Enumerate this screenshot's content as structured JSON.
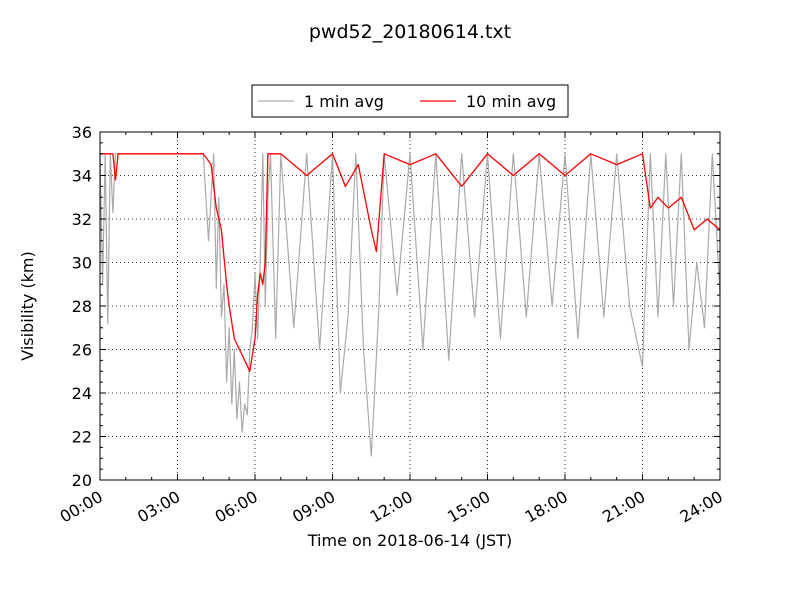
{
  "chart_data": {
    "type": "line",
    "title": "pwd52_20180614.txt",
    "xlabel": "Time on 2018-06-14 (JST)",
    "ylabel": "Visibility (km)",
    "xlim_hours": [
      0,
      24
    ],
    "ylim": [
      20,
      36
    ],
    "x_ticks": [
      "00:00",
      "03:00",
      "06:00",
      "09:00",
      "12:00",
      "15:00",
      "18:00",
      "21:00",
      "24:00"
    ],
    "y_ticks": [
      20,
      22,
      24,
      26,
      28,
      30,
      32,
      34,
      36
    ],
    "grid": true,
    "legend": {
      "placement": "top-center"
    },
    "colors": {
      "one_min": "#aaaaaa",
      "ten_min": "#ff0000"
    },
    "series": [
      {
        "name": "1 min avg",
        "sampling": "1 minute",
        "x_hours": [
          0.0,
          0.1,
          0.2,
          0.3,
          0.4,
          0.5,
          0.6,
          0.7,
          0.8,
          4.0,
          4.2,
          4.4,
          4.5,
          4.6,
          4.7,
          4.8,
          4.9,
          5.0,
          5.1,
          5.2,
          5.3,
          5.4,
          5.5,
          5.6,
          5.7,
          5.8,
          5.9,
          6.0,
          6.1,
          6.2,
          6.3,
          6.4,
          6.5,
          6.6,
          6.8,
          7.0,
          7.5,
          8.0,
          8.5,
          9.0,
          9.3,
          9.6,
          9.9,
          10.2,
          10.5,
          10.8,
          11.0,
          11.5,
          12.0,
          12.5,
          13.0,
          13.5,
          14.0,
          14.5,
          15.0,
          15.5,
          16.0,
          16.5,
          17.0,
          17.5,
          18.0,
          18.5,
          19.0,
          19.5,
          20.0,
          20.5,
          21.0,
          21.3,
          21.6,
          21.9,
          22.2,
          22.5,
          22.8,
          23.1,
          23.4,
          23.7,
          24.0
        ],
        "values_km": [
          35.0,
          29.0,
          35.0,
          27.2,
          35.0,
          32.3,
          35.0,
          35.0,
          35.0,
          35.0,
          31.0,
          35.0,
          28.8,
          33.0,
          27.5,
          29.0,
          24.5,
          27.0,
          23.5,
          26.0,
          22.8,
          24.5,
          22.2,
          23.5,
          23.0,
          26.0,
          27.0,
          29.5,
          26.5,
          30.0,
          35.0,
          28.0,
          33.0,
          35.0,
          26.5,
          35.0,
          27.0,
          35.0,
          26.0,
          35.0,
          24.0,
          27.5,
          35.0,
          26.0,
          21.1,
          28.0,
          35.0,
          28.5,
          35.0,
          26.0,
          35.0,
          25.5,
          35.0,
          27.5,
          35.0,
          26.5,
          35.0,
          27.5,
          35.0,
          28.0,
          35.0,
          26.5,
          35.0,
          27.5,
          35.0,
          28.0,
          25.2,
          35.0,
          27.5,
          35.0,
          28.0,
          35.0,
          26.0,
          30.0,
          27.0,
          35.0,
          28.5
        ]
      },
      {
        "name": "10 min avg",
        "sampling": "10 minute",
        "x_hours": [
          0.0,
          0.5,
          0.6,
          0.7,
          1.0,
          2.0,
          3.0,
          4.0,
          4.3,
          4.5,
          4.7,
          4.9,
          5.0,
          5.2,
          5.4,
          5.6,
          5.8,
          6.0,
          6.1,
          6.2,
          6.3,
          6.4,
          6.5,
          7.0,
          8.0,
          9.0,
          9.5,
          10.0,
          10.5,
          10.7,
          11.0,
          12.0,
          13.0,
          14.0,
          15.0,
          16.0,
          17.0,
          18.0,
          19.0,
          20.0,
          21.0,
          21.3,
          21.6,
          22.0,
          22.5,
          23.0,
          23.5,
          24.0
        ],
        "values_km": [
          35.0,
          35.0,
          33.8,
          35.0,
          35.0,
          35.0,
          35.0,
          35.0,
          34.5,
          32.5,
          31.5,
          29.0,
          28.0,
          26.5,
          26.0,
          25.5,
          25.0,
          26.5,
          28.5,
          29.5,
          29.0,
          30.0,
          35.0,
          35.0,
          34.0,
          35.0,
          33.5,
          34.5,
          31.5,
          30.5,
          35.0,
          34.5,
          35.0,
          33.5,
          35.0,
          34.0,
          35.0,
          34.0,
          35.0,
          34.5,
          35.0,
          32.5,
          33.0,
          32.5,
          33.0,
          31.5,
          32.0,
          31.5
        ]
      }
    ]
  }
}
